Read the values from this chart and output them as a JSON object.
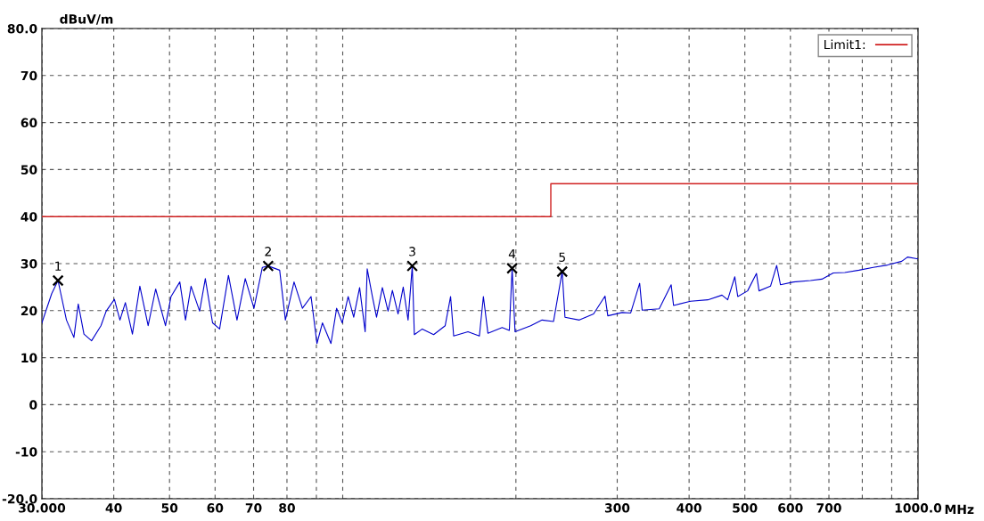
{
  "chart_data": {
    "type": "line",
    "ylabel": "dBuV/m",
    "xlabel": "MHz",
    "log": "x",
    "xlim": [
      30,
      1000
    ],
    "xticks": [
      {
        "value": 30,
        "label": "30.000"
      },
      40,
      50,
      60,
      70,
      80,
      {
        "value": 90,
        "label": null
      },
      {
        "value": 100,
        "label": null
      },
      {
        "value": 200,
        "label": null
      },
      300,
      400,
      500,
      600,
      700,
      {
        "value": 800,
        "label": null
      },
      {
        "value": 900,
        "label": null
      },
      {
        "value": 1000,
        "label": "1000.0"
      }
    ],
    "ylim": [
      -20,
      80
    ],
    "yticks": [
      {
        "value": -20,
        "label": "-20.0"
      },
      -10,
      0,
      10,
      20,
      30,
      40,
      50,
      60,
      70,
      {
        "value": 80,
        "label": "80.0"
      }
    ],
    "grid": true,
    "legend": "top right",
    "series": [
      {
        "color": "#0000cc",
        "x": [
          30.0,
          31.2,
          32.0,
          33.1,
          34.1,
          34.7,
          35.5,
          36.6,
          38.0,
          38.8,
          40.1,
          41.0,
          41.9,
          43.1,
          44.4,
          45.9,
          47.3,
          49.2,
          50.3,
          52.1,
          53.3,
          54.5,
          56.4,
          57.7,
          59.4,
          61.1,
          63.3,
          65.5,
          67.7,
          70.1,
          72.5,
          74.2,
          77.7,
          79.5,
          82.3,
          85.1,
          88.1,
          90.2,
          92.2,
          95.4,
          97.6,
          99.8,
          102.2,
          104.5,
          107.0,
          109.4,
          110.3,
          112.6,
          114.5,
          117.2,
          119.9,
          122.0,
          124.8,
          127.4,
          129.9,
          132.1,
          133.2,
          137.5,
          143.9,
          150.7,
          154.0,
          155.9,
          165.1,
          172.8,
          175.6,
          178.8,
          189.3,
          194.8,
          197.0,
          199.3,
          212.2,
          222.1,
          232.5,
          240.7,
          243.4,
          257.8,
          272.9,
          285.7,
          288.9,
          306,
          316.6,
          328.2,
          331.5,
          354.9,
          372.3,
          375.9,
          402.3,
          431.1,
          456.3,
          466.8,
          480.3,
          486.0,
          505.5,
          523.8,
          529.2,
          554.1,
          567.9,
          576.6,
          607.2,
          650.1,
          680.7,
          712.2,
          745.8,
          789.3,
          835.8,
          885,
          936.9,
          958.8,
          1000
        ],
        "values": [
          17.4,
          23.6,
          26.4,
          18,
          14.3,
          21.4,
          15,
          13.6,
          16.8,
          19.9,
          22.4,
          18,
          21.7,
          15,
          25.2,
          16.8,
          24.6,
          16.8,
          23,
          26.1,
          18,
          25.2,
          19.9,
          26.8,
          17.4,
          16.1,
          27.5,
          18,
          26.8,
          20.5,
          29.2,
          29.5,
          28.6,
          18,
          26.1,
          20.5,
          23,
          13,
          17.4,
          13,
          20.5,
          17.4,
          23,
          18.6,
          24.9,
          15.5,
          28.9,
          23,
          18.6,
          24.9,
          19.9,
          24.3,
          19.3,
          25,
          18,
          29.5,
          14.9,
          16.1,
          14.9,
          16.8,
          23,
          14.6,
          15.5,
          14.6,
          23,
          15.2,
          16.4,
          15.8,
          29,
          15.5,
          16.8,
          18,
          17.7,
          28.3,
          18.6,
          18,
          19.3,
          23.1,
          18.9,
          19.6,
          19.5,
          25.8,
          20.1,
          20.4,
          25.5,
          21.1,
          22,
          22.3,
          23.3,
          22.3,
          27.2,
          23,
          24.2,
          27.9,
          24.2,
          25.2,
          29.6,
          25.5,
          26.1,
          26.4,
          26.7,
          28,
          28.1,
          28.6,
          29.2,
          29.7,
          30.5,
          31.4,
          31
        ]
      },
      {
        "name": "Limit1:",
        "color": "#d02020",
        "x": [
          30,
          230,
          230,
          1000
        ],
        "values": [
          40,
          40,
          47,
          47
        ]
      },
      {
        "type": "scatter",
        "marker": "cross",
        "color": "#000000",
        "x": [
          32.0,
          74.2,
          132.1,
          197.0,
          240.7
        ],
        "values": [
          26.4,
          29.5,
          29.5,
          29,
          28.3
        ]
      }
    ],
    "annotations": [
      {
        "text": "1",
        "x": 32.0,
        "y": 26.4
      },
      {
        "text": "2",
        "x": 74.2,
        "y": 29.5
      },
      {
        "text": "3",
        "x": 132.1,
        "y": 29.5
      },
      {
        "text": "4",
        "x": 197.0,
        "y": 29
      },
      {
        "text": "5",
        "x": 240.7,
        "y": 28.3
      }
    ]
  }
}
